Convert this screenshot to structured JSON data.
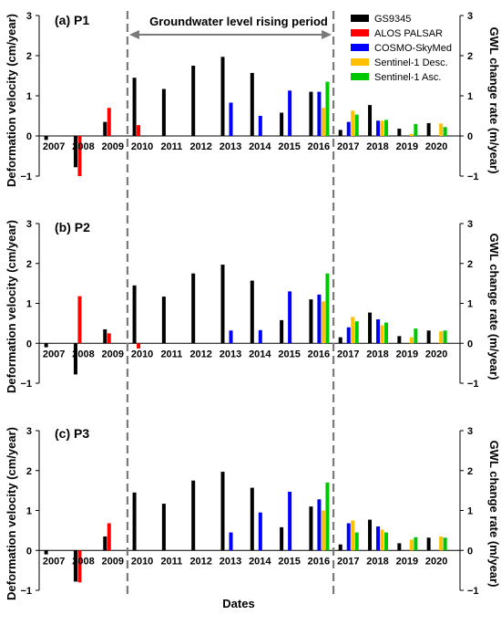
{
  "figure": {
    "period_label": "Groundwater level rising period",
    "x_title": "Dates",
    "y_left_title": "Deformation velocity (cm/year)",
    "y_right_title": "GWL change rate (m/year)",
    "period_range": [
      2009.5,
      2016.5
    ]
  },
  "legend": [
    {
      "name": "GS9345",
      "color": "#000000"
    },
    {
      "name": "ALOS PALSAR",
      "color": "#ff0000"
    },
    {
      "name": "COSMO-SkyMed",
      "color": "#0000ff"
    },
    {
      "name": "Sentinel-1 Desc.",
      "color": "#ffc000"
    },
    {
      "name": "Sentinel-1 Asc.",
      "color": "#00c800"
    }
  ],
  "chart_data": [
    {
      "type": "bar",
      "title": "(a) P1",
      "categories": [
        "2007",
        "2008",
        "2009",
        "2010",
        "2011",
        "2012",
        "2013",
        "2014",
        "2015",
        "2016",
        "2017",
        "2018",
        "2019",
        "2020"
      ],
      "ylim": [
        -1,
        3
      ],
      "yticks": [
        -1,
        0,
        1,
        2,
        3
      ],
      "y2ticks": [
        -1,
        0,
        1,
        2,
        3
      ],
      "series": [
        {
          "name": "GS9345",
          "values": [
            -0.1,
            -0.78,
            0.35,
            1.45,
            1.17,
            1.75,
            1.97,
            1.57,
            0.58,
            1.1,
            0.15,
            0.77,
            0.18,
            0.32
          ]
        },
        {
          "name": "ALOS PALSAR",
          "values": [
            null,
            -1.0,
            0.7,
            0.27,
            null,
            null,
            null,
            null,
            null,
            null,
            null,
            null,
            null,
            null
          ]
        },
        {
          "name": "COSMO-SkyMed",
          "values": [
            null,
            null,
            null,
            null,
            null,
            null,
            0.83,
            0.5,
            1.13,
            1.1,
            0.35,
            0.38,
            null,
            null
          ]
        },
        {
          "name": "Sentinel-1 Desc.",
          "values": [
            null,
            null,
            null,
            null,
            null,
            null,
            null,
            null,
            null,
            0.7,
            0.63,
            0.38,
            0.05,
            0.31
          ]
        },
        {
          "name": "Sentinel-1 Asc.",
          "values": [
            null,
            null,
            null,
            null,
            null,
            null,
            null,
            null,
            null,
            1.35,
            0.53,
            0.4,
            0.3,
            0.22
          ]
        }
      ]
    },
    {
      "type": "bar",
      "title": "(b) P2",
      "categories": [
        "2007",
        "2008",
        "2009",
        "2010",
        "2011",
        "2012",
        "2013",
        "2014",
        "2015",
        "2016",
        "2017",
        "2018",
        "2019",
        "2020"
      ],
      "ylim": [
        -1,
        3
      ],
      "yticks": [
        -1,
        0,
        1,
        2,
        3
      ],
      "y2ticks": [
        -1,
        0,
        1,
        2,
        3
      ],
      "series": [
        {
          "name": "GS9345",
          "values": [
            -0.1,
            -0.78,
            0.35,
            1.45,
            1.17,
            1.75,
            1.97,
            1.57,
            0.58,
            1.1,
            0.15,
            0.77,
            0.18,
            0.32
          ]
        },
        {
          "name": "ALOS PALSAR",
          "values": [
            null,
            1.18,
            0.25,
            -0.13,
            null,
            null,
            null,
            null,
            null,
            null,
            null,
            null,
            null,
            null
          ]
        },
        {
          "name": "COSMO-SkyMed",
          "values": [
            null,
            null,
            null,
            null,
            null,
            null,
            0.32,
            0.33,
            1.3,
            1.22,
            0.4,
            0.6,
            null,
            null
          ]
        },
        {
          "name": "Sentinel-1 Desc.",
          "values": [
            null,
            null,
            null,
            null,
            null,
            null,
            null,
            null,
            null,
            1.05,
            0.66,
            0.45,
            0.15,
            0.3
          ]
        },
        {
          "name": "Sentinel-1 Asc.",
          "values": [
            null,
            null,
            null,
            null,
            null,
            null,
            null,
            null,
            null,
            1.75,
            0.55,
            0.52,
            0.37,
            0.32
          ]
        }
      ]
    },
    {
      "type": "bar",
      "title": "(c) P3",
      "categories": [
        "2007",
        "2008",
        "2009",
        "2010",
        "2011",
        "2012",
        "2013",
        "2014",
        "2015",
        "2016",
        "2017",
        "2018",
        "2019",
        "2020"
      ],
      "ylim": [
        -1,
        3
      ],
      "yticks": [
        -1,
        0,
        1,
        2,
        3
      ],
      "y2ticks": [
        -1,
        0,
        1,
        2,
        3
      ],
      "series": [
        {
          "name": "GS9345",
          "values": [
            -0.1,
            -0.78,
            0.35,
            1.45,
            1.17,
            1.75,
            1.97,
            1.57,
            0.58,
            1.1,
            0.15,
            0.77,
            0.18,
            0.32
          ]
        },
        {
          "name": "ALOS PALSAR",
          "values": [
            null,
            -0.8,
            0.68,
            null,
            null,
            null,
            null,
            null,
            null,
            null,
            null,
            null,
            null,
            null
          ]
        },
        {
          "name": "COSMO-SkyMed",
          "values": [
            null,
            null,
            null,
            null,
            null,
            null,
            0.45,
            0.95,
            1.47,
            1.28,
            0.68,
            0.6,
            null,
            null
          ]
        },
        {
          "name": "Sentinel-1 Desc.",
          "values": [
            null,
            null,
            null,
            null,
            null,
            null,
            null,
            null,
            null,
            1.0,
            0.75,
            0.52,
            0.27,
            0.35
          ]
        },
        {
          "name": "Sentinel-1 Asc.",
          "values": [
            null,
            null,
            null,
            null,
            null,
            null,
            null,
            null,
            null,
            1.7,
            0.45,
            0.45,
            0.33,
            0.32
          ]
        }
      ]
    }
  ]
}
